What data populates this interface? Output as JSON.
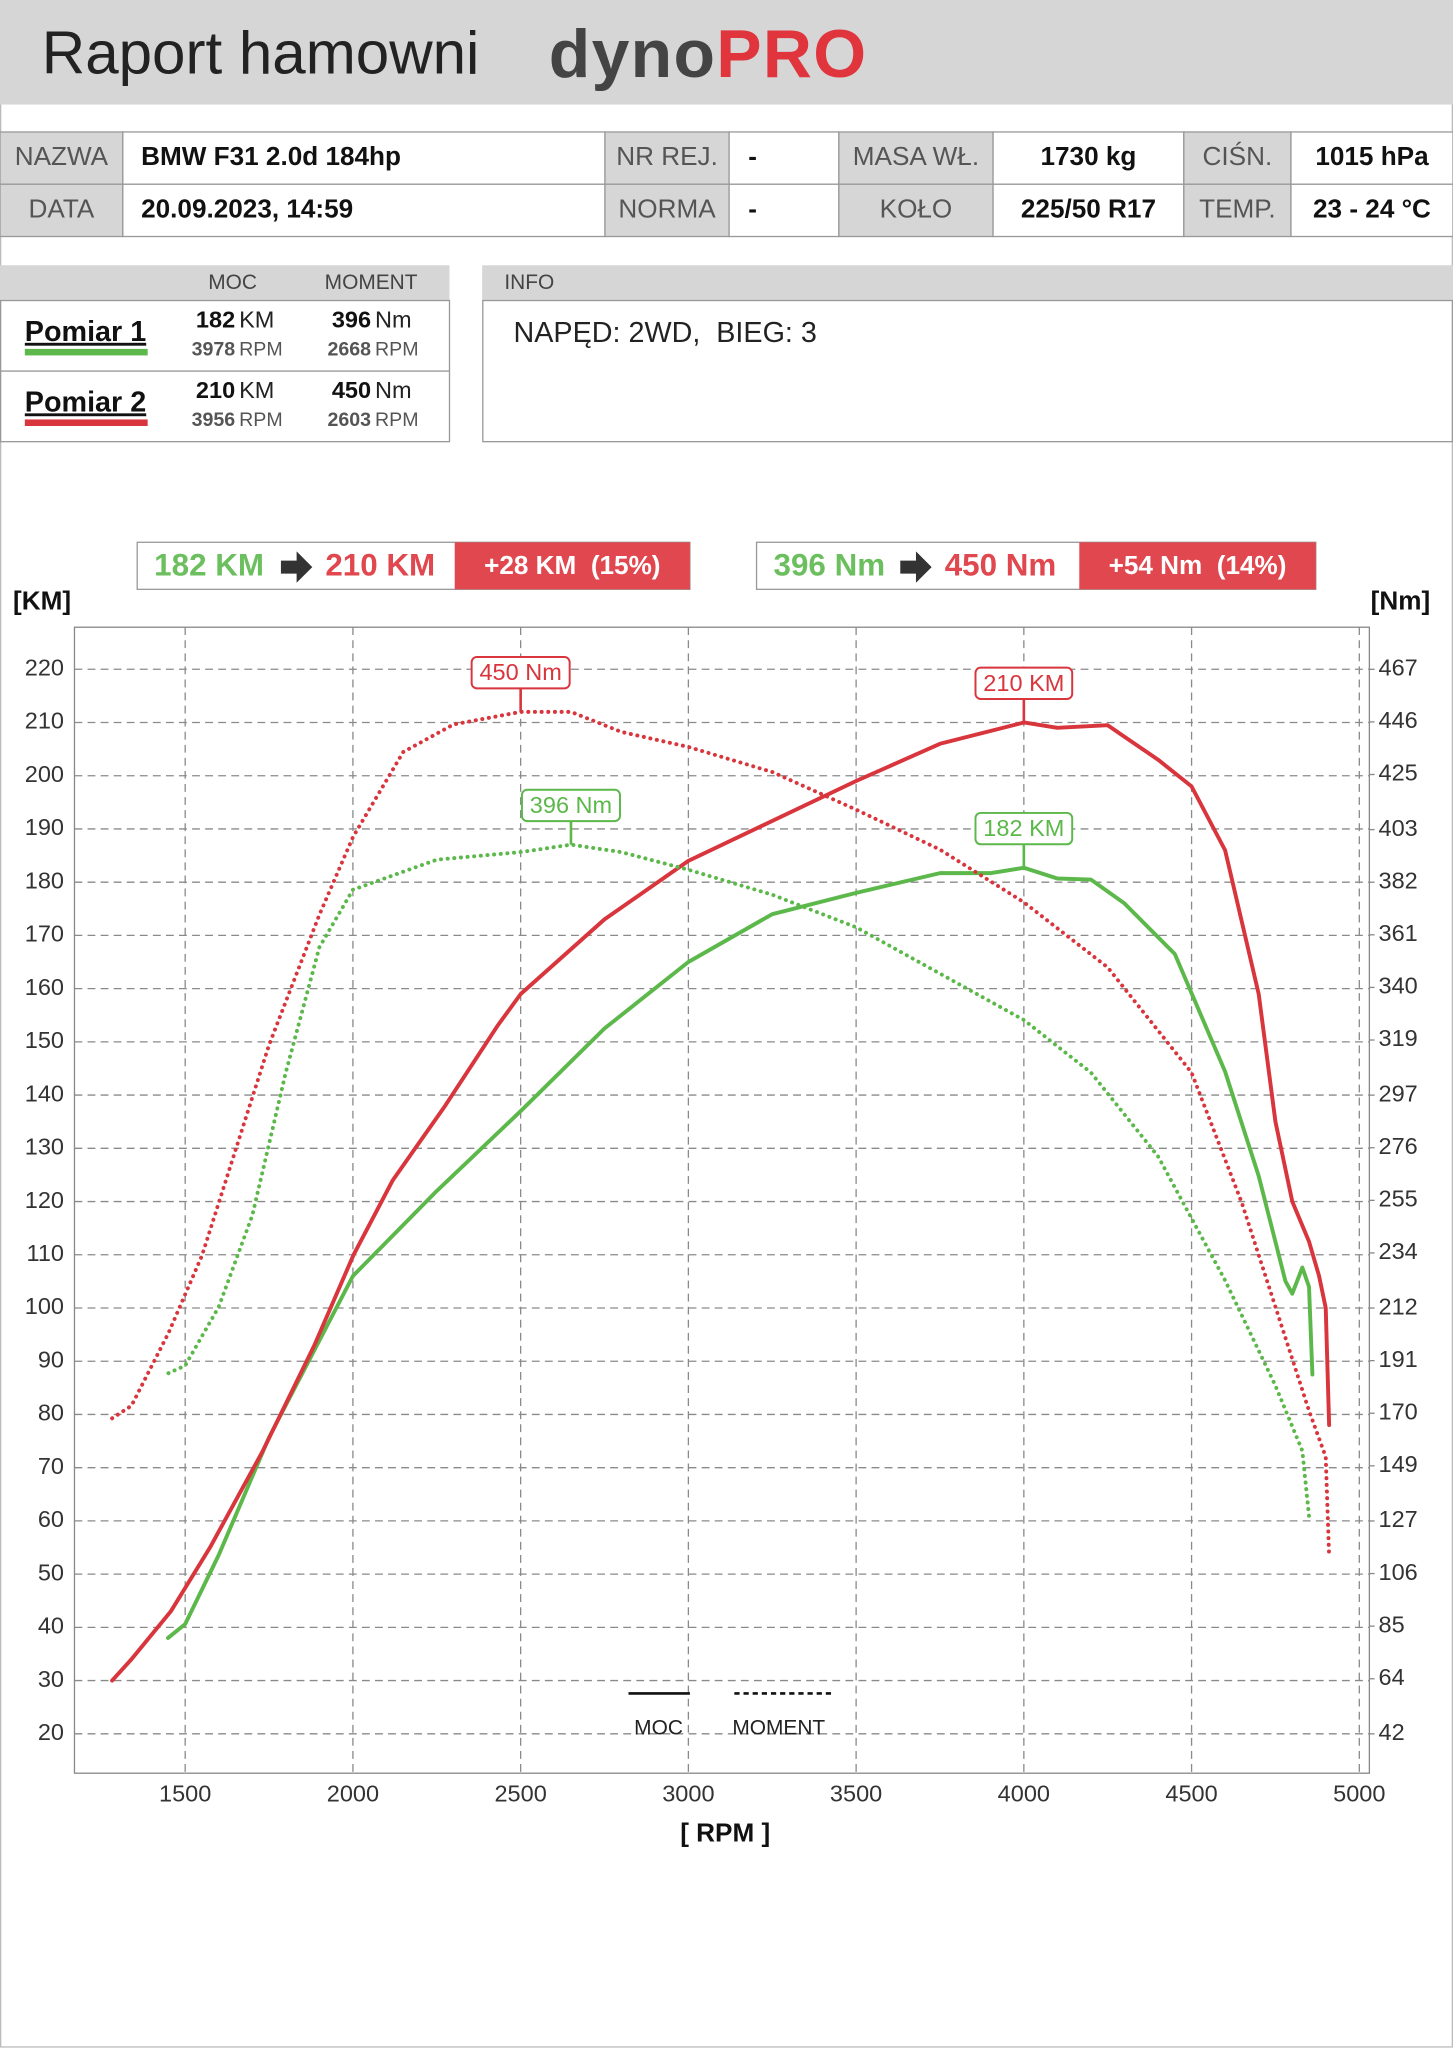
{
  "header": {
    "title": "Raport hamowni",
    "brand_dark": "dyno",
    "brand_red": "PRO"
  },
  "specs": [
    [
      {
        "label": "NAZWA",
        "value": "BMW F31 2.0d 184hp"
      },
      {
        "label": "NR REJ.",
        "value": "-"
      },
      {
        "label": "MASA WŁ.",
        "value": "1730 kg"
      },
      {
        "label": "CIŚN.",
        "value": "1015 hPa"
      }
    ],
    [
      {
        "label": "DATA",
        "value": "20.09.2023, 14:59"
      },
      {
        "label": "NORMA",
        "value": "-"
      },
      {
        "label": "KOŁO",
        "value": "225/50 R17"
      },
      {
        "label": "TEMP.",
        "value": "23 - 24 °C"
      }
    ]
  ],
  "measurements": {
    "headers": [
      "MOC",
      "MOMENT"
    ],
    "rows": [
      {
        "power": "182",
        "power_unit": "KM",
        "power_rpm": "3978",
        "power_rpm_unit": "RPM",
        "torque": "396",
        "torque_unit": "Nm",
        "torque_rpm": "2668",
        "torque_rpm_unit": "RPM"
      },
      {
        "power": "210",
        "power_unit": "KM",
        "power_rpm": "3956",
        "power_rpm_unit": "RPM",
        "torque": "450",
        "torque_unit": "Nm",
        "torque_rpm": "2603",
        "torque_rpm_unit": "RPM"
      }
    ]
  },
  "info": {
    "title": "INFO",
    "text": "NAPĘD: 2WD,  BIEG: 3"
  },
  "comparison": [
    {
      "from": "182 KM",
      "to": "210 KM",
      "delta": "+28 KM  (15%)"
    },
    {
      "from": "396 Nm",
      "to": "450 Nm",
      "delta": "+54 Nm  (14%)"
    }
  ],
  "chart_data": {
    "type": "line",
    "y_label": "[KM]",
    "y2_label": "[Nm]",
    "x_label": "[ RPM ]",
    "xlim": [
      1170,
      5030
    ],
    "xticks": [
      1500,
      2000,
      2500,
      3000,
      3500,
      4000,
      4500,
      5000
    ],
    "ylim": [
      12.6,
      227.9
    ],
    "yticks": [
      20,
      30,
      40,
      50,
      60,
      70,
      80,
      90,
      100,
      110,
      120,
      130,
      140,
      150,
      160,
      170,
      180,
      190,
      200,
      210,
      220
    ],
    "y2lim": [
      26.3,
      483.8
    ],
    "y2ticks": [
      42,
      64,
      85,
      106,
      127,
      149,
      170,
      191,
      212,
      234,
      255,
      276,
      297,
      319,
      340,
      361,
      382,
      403,
      425,
      446,
      467
    ],
    "grid": true,
    "line_legend": [
      {
        "label": "MOC",
        "dashed": false
      },
      {
        "label": "MOMENT",
        "dashed": true
      }
    ],
    "series": [
      {
        "name": "Pomiar 1",
        "color": "#5cb84a",
        "dashed": false,
        "annotation": "182 KM",
        "x": [
          1449,
          1500,
          1600,
          1750,
          2000,
          2250,
          2500,
          2750,
          3000,
          3250,
          3500,
          3750,
          3900,
          4000,
          4100,
          4200,
          4300,
          4450,
          4600,
          4700,
          4780,
          4800,
          4830,
          4850,
          4860
        ],
        "values": [
          38,
          40.6,
          53.6,
          75.7,
          106,
          122,
          137,
          152.5,
          165,
          174,
          178,
          181.7,
          181.7,
          182.7,
          180.7,
          180.5,
          176,
          166.5,
          144.4,
          124.8,
          105,
          102.7,
          107.6,
          104,
          87.5
        ]
      },
      {
        "name": "Pomiar 2",
        "color": "#d8353d",
        "dashed": false,
        "annotation": "210 KM",
        "x": [
          1282,
          1340,
          1457,
          1574,
          1730,
          1885,
          2002,
          2119,
          2275,
          2431,
          2500,
          2750,
          3000,
          3500,
          3750,
          4000,
          4100,
          4250,
          4400,
          4500,
          4600,
          4700,
          4750,
          4800,
          4850,
          4880,
          4900,
          4910
        ],
        "values": [
          30,
          34,
          43,
          55,
          73,
          93,
          110,
          124,
          138,
          153,
          159,
          173,
          184,
          199,
          206,
          210,
          209,
          209.5,
          203,
          198,
          186,
          159,
          135,
          120,
          112.5,
          106,
          100,
          78
        ]
      },
      {
        "color": "#5cb84a",
        "dashed": true,
        "axis": "y2",
        "annotation": "396 Nm",
        "x": [
          1450,
          1500,
          1600,
          1700,
          1800,
          1900,
          2000,
          2250,
          2500,
          2650,
          2800,
          3000,
          3250,
          3500,
          3750,
          4000,
          4200,
          4400,
          4600,
          4750,
          4830,
          4850
        ],
        "values": [
          186,
          189,
          212.5,
          249,
          306,
          356,
          379,
          391,
          394,
          397,
          394,
          387,
          377,
          364,
          345.5,
          327,
          306,
          272.5,
          223,
          181,
          155,
          129
        ]
      },
      {
        "color": "#d8353d",
        "dashed": true,
        "axis": "y2",
        "annotation": "450 Nm",
        "x": [
          1282,
          1340,
          1450,
          1550,
          1650,
          1750,
          1900,
          2000,
          2150,
          2300,
          2500,
          2650,
          2800,
          3000,
          3250,
          3500,
          3750,
          4000,
          4250,
          4500,
          4650,
          4750,
          4850,
          4900,
          4910
        ],
        "values": [
          168,
          173,
          202,
          233,
          275,
          317,
          369,
          400,
          434,
          445,
          450,
          450,
          442,
          436,
          426,
          411,
          395,
          374,
          348,
          306,
          254,
          212.5,
          171,
          152.6,
          113
        ]
      }
    ]
  }
}
